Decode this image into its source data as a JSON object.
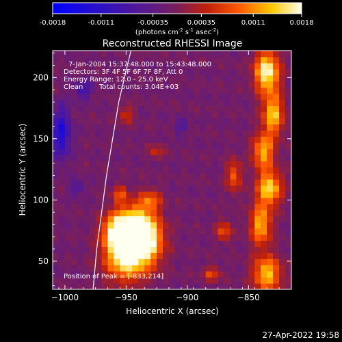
{
  "colorbar": {
    "tick_labels": [
      "-0.0018",
      "-0.0011",
      "-0.00035",
      "0.00035",
      "0.0011",
      "0.0018"
    ],
    "tick_values": [
      -0.0018,
      -0.0011,
      -0.00035,
      0.00035,
      0.0011,
      0.0018
    ],
    "range": [
      -0.0018,
      0.0018
    ],
    "units_text": "(photons cm",
    "units_exp1": "-2",
    "units_mid": " s",
    "units_exp2": "-1",
    "units_end": " asec",
    "units_exp3": "-2",
    "units_close": ")"
  },
  "chart_data": {
    "type": "heatmap",
    "title": "Reconstructed RHESSI Image",
    "xlabel": "Heliocentric X (arcsec)",
    "ylabel": "Heliocentric Y (arcsec)",
    "xlim": [
      -1010,
      -815
    ],
    "ylim": [
      27,
      222
    ],
    "x_ticks": [
      -1000,
      -950,
      -900,
      -850
    ],
    "x_tick_labels": [
      "−1000",
      "−950",
      "−900",
      "−850"
    ],
    "y_ticks": [
      50,
      100,
      150,
      200
    ],
    "y_tick_labels": [
      "50",
      "100",
      "150",
      "200"
    ],
    "annotations": [
      "7-Jan-2004 15:37:48.000 to 15:43:48.000",
      "Detectors: 3F 4F 5F 6F 7F 8F, Att 0",
      "Energy Range: 12.0 - 25.0 keV",
      "Clean",
      "Total counts: 3.04E+03",
      "Position of Peak = [-833,214]"
    ],
    "peak_position": [
      -833,
      214
    ],
    "limb": [
      [
        -977,
        27
      ],
      [
        -974,
        60
      ],
      [
        -970,
        90
      ],
      [
        -966,
        120
      ],
      [
        -961,
        150
      ],
      [
        -956,
        180
      ],
      [
        -949,
        210
      ],
      [
        -946,
        222
      ]
    ],
    "bright_regions": [
      {
        "x": -950,
        "y": 55,
        "level": 1.0,
        "sx": 12,
        "sy": 14
      },
      {
        "x": -945,
        "y": 80,
        "level": 0.85,
        "sx": 10,
        "sy": 12
      },
      {
        "x": -932,
        "y": 68,
        "level": 0.8,
        "sx": 9,
        "sy": 14
      },
      {
        "x": -960,
        "y": 75,
        "level": 0.6,
        "sx": 7,
        "sy": 10
      },
      {
        "x": -930,
        "y": 100,
        "level": 0.45,
        "sx": 6,
        "sy": 6
      },
      {
        "x": -955,
        "y": 105,
        "level": 0.4,
        "sx": 4,
        "sy": 5
      },
      {
        "x": -835,
        "y": 205,
        "level": 0.95,
        "sx": 7,
        "sy": 12
      },
      {
        "x": -830,
        "y": 170,
        "level": 0.75,
        "sx": 6,
        "sy": 12
      },
      {
        "x": -838,
        "y": 140,
        "level": 0.7,
        "sx": 6,
        "sy": 10
      },
      {
        "x": -833,
        "y": 110,
        "level": 0.8,
        "sx": 7,
        "sy": 10
      },
      {
        "x": -840,
        "y": 80,
        "level": 0.7,
        "sx": 6,
        "sy": 12
      },
      {
        "x": -835,
        "y": 40,
        "level": 0.75,
        "sx": 8,
        "sy": 10
      },
      {
        "x": -862,
        "y": 120,
        "level": 0.5,
        "sx": 4,
        "sy": 9
      },
      {
        "x": -870,
        "y": 75,
        "level": 0.45,
        "sx": 4,
        "sy": 6
      },
      {
        "x": -950,
        "y": 170,
        "level": 0.35,
        "sx": 4,
        "sy": 5
      },
      {
        "x": -925,
        "y": 140,
        "level": 0.3,
        "sx": 4,
        "sy": 4
      },
      {
        "x": -880,
        "y": 40,
        "level": 0.4,
        "sx": 5,
        "sy": 4
      }
    ],
    "dark_regions": [
      {
        "x": -1003,
        "y": 155,
        "level": -0.6,
        "sx": 5,
        "sy": 14
      },
      {
        "x": -985,
        "y": 190,
        "level": -0.35,
        "sx": 5,
        "sy": 5
      },
      {
        "x": -990,
        "y": 110,
        "level": -0.3,
        "sx": 4,
        "sy": 4
      },
      {
        "x": -905,
        "y": 160,
        "level": -0.25,
        "sx": 4,
        "sy": 4
      }
    ]
  },
  "footer": {
    "timestamp": "27-Apr-2022 19:58"
  }
}
